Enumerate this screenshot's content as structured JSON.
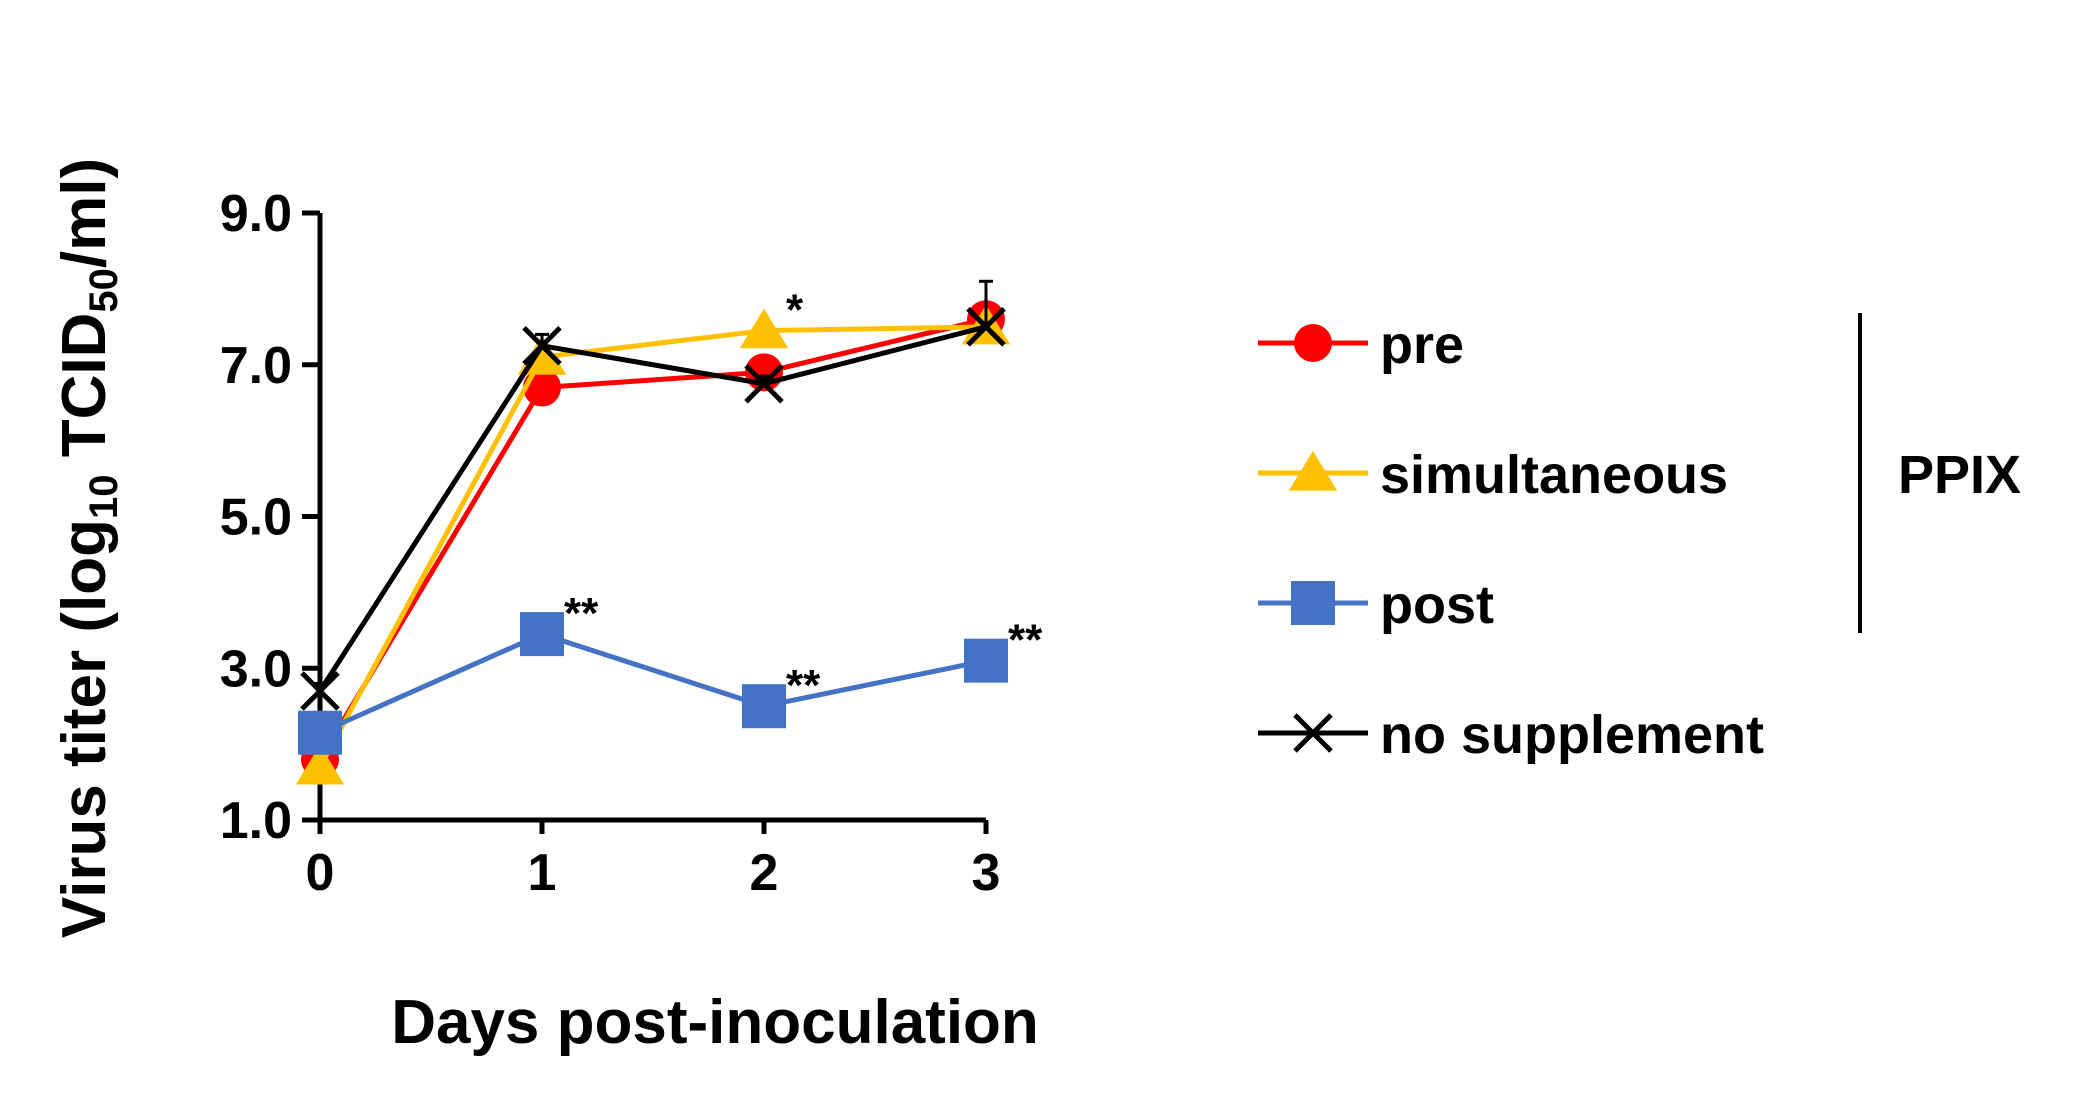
{
  "chart_data": {
    "type": "line",
    "title": "",
    "xlabel": "Days post-inoculation",
    "ylabel": {
      "prefix": "Virus titer (log",
      "sub1": "10",
      "mid": " TCID",
      "sub2": "50",
      "suffix": "/ml)"
    },
    "x": [
      0,
      1,
      2,
      3
    ],
    "x_tick_labels": [
      "0",
      "1",
      "2",
      "3"
    ],
    "ylim": [
      1.0,
      9.0
    ],
    "y_ticks": [
      1.0,
      3.0,
      5.0,
      7.0,
      9.0
    ],
    "y_tick_labels": [
      "1.0",
      "3.0",
      "5.0",
      "7.0",
      "9.0"
    ],
    "grid": false,
    "legend_position": "right",
    "series": [
      {
        "name": "pre",
        "color": "#ff0000",
        "marker": "circle",
        "values": [
          1.8,
          6.7,
          6.9,
          7.6
        ],
        "errors": [
          0.1,
          0.1,
          0.1,
          0.1
        ],
        "annotations": [
          "",
          "",
          "",
          ""
        ]
      },
      {
        "name": "simultaneous",
        "color": "#ffc000",
        "marker": "triangle",
        "values": [
          1.7,
          7.1,
          7.45,
          7.5
        ],
        "errors": [
          0.1,
          0.1,
          0.1,
          0.1
        ],
        "annotations": [
          "",
          "",
          "*",
          ""
        ]
      },
      {
        "name": "post",
        "color": "#4472c4",
        "marker": "square",
        "values": [
          2.15,
          3.45,
          2.5,
          3.1
        ],
        "errors": [
          0.1,
          0.1,
          0.1,
          0.1
        ],
        "annotations": [
          "",
          "**",
          "**",
          "**"
        ]
      },
      {
        "name": "no supplement",
        "color": "#000000",
        "marker": "x",
        "values": [
          2.7,
          7.25,
          6.75,
          7.5
        ],
        "errors": [
          0.1,
          0.15,
          0.1,
          0.6
        ],
        "annotations": [
          "",
          "",
          "",
          ""
        ]
      }
    ],
    "group_bracket": {
      "label": "PPIX",
      "series": [
        "pre",
        "simultaneous",
        "post"
      ]
    }
  }
}
